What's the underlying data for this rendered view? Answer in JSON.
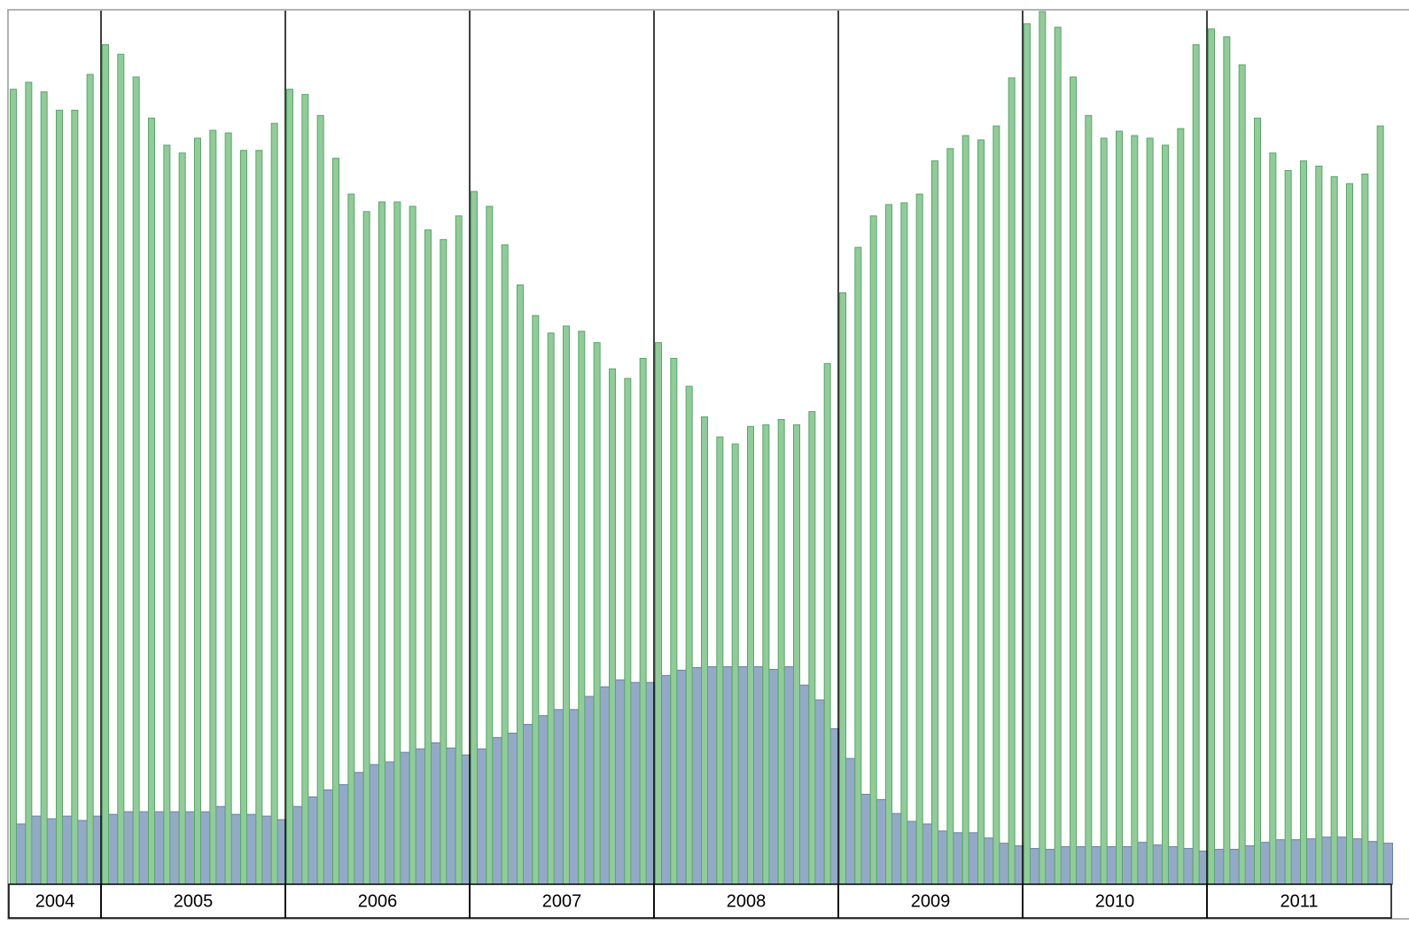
{
  "chart_data": {
    "type": "bar",
    "categories": [
      "2004",
      "2005",
      "2006",
      "2007",
      "2008",
      "2009",
      "2010",
      "2011"
    ],
    "ylim": [
      0,
      100
    ],
    "series": [
      {
        "color": "#94a9c9",
        "values": [
          [
            6.9,
            7.8,
            7.5,
            7.8,
            7.3,
            7.8
          ],
          [
            8.0,
            8.3,
            8.3,
            8.3,
            8.3,
            8.3,
            8.3,
            8.9,
            8.0,
            8.0,
            7.8,
            7.4
          ],
          [
            8.9,
            10.0,
            10.8,
            11.4,
            12.8,
            13.7,
            14.0,
            15.1,
            15.5,
            16.2,
            15.6,
            14.8
          ],
          [
            15.5,
            16.8,
            17.3,
            18.3,
            19.3,
            20.0,
            20.0,
            21.5,
            22.6,
            23.4,
            23.1,
            23.1
          ],
          [
            23.9,
            24.5,
            24.8,
            24.9,
            24.9,
            24.9,
            24.9,
            24.6,
            24.9,
            22.8,
            21.1,
            17.8
          ],
          [
            14.4,
            10.3,
            9.7,
            8.1,
            7.2,
            6.9,
            6.1,
            5.9,
            5.9,
            5.3,
            4.7,
            4.4
          ],
          [
            4.1,
            4.0,
            4.3,
            4.3,
            4.3,
            4.3,
            4.3,
            4.8,
            4.5,
            4.3,
            4.1,
            3.8
          ],
          [
            4.0,
            4.0,
            4.4,
            4.8,
            5.1,
            5.1,
            5.2,
            5.4,
            5.4,
            5.2,
            4.9,
            4.7
          ]
        ]
      },
      {
        "color": "#8fcc98",
        "values": [
          [
            91.0,
            91.8,
            90.7,
            88.6,
            88.6,
            92.7
          ],
          [
            96.1,
            95.0,
            92.4,
            87.7,
            84.6,
            83.7,
            85.4,
            86.3,
            86.0,
            84.0,
            84.0,
            87.1
          ],
          [
            91.0,
            90.4,
            88.0,
            83.1,
            79.0,
            77.0,
            78.1,
            78.1,
            77.6,
            74.9,
            73.8,
            76.5
          ],
          [
            79.3,
            77.6,
            73.2,
            68.6,
            65.1,
            63.1,
            63.9,
            63.3,
            62.0,
            59.0,
            57.9,
            60.2
          ],
          [
            62.0,
            60.2,
            57.0,
            53.5,
            51.2,
            50.4,
            52.4,
            52.6,
            53.2,
            52.6,
            54.1,
            59.6
          ],
          [
            67.7,
            72.9,
            76.5,
            77.8,
            78.0,
            79.0,
            82.8,
            84.2,
            85.7,
            85.2,
            86.8,
            92.3
          ],
          [
            98.5,
            99.9,
            98.1,
            92.4,
            88.0,
            85.4,
            86.2,
            85.7,
            85.4,
            84.6,
            86.5,
            96.1
          ],
          [
            97.9,
            97.0,
            93.8,
            87.7,
            83.7,
            81.7,
            82.8,
            82.2,
            81.0,
            80.2,
            81.3,
            86.8
          ]
        ]
      }
    ]
  }
}
